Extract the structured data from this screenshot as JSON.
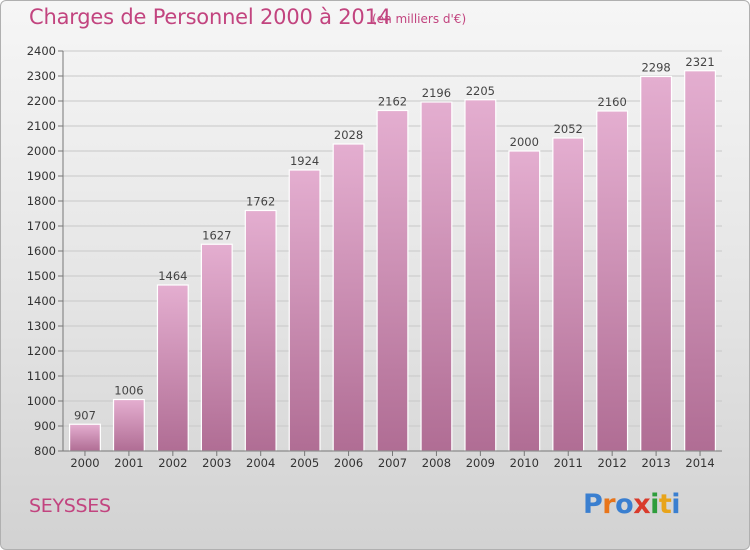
{
  "title": "Charges de Personnel 2000 à 2014",
  "subtitle": "(en milliers d'€)",
  "city": "SEYSSES",
  "logo": {
    "text": "Proxiti",
    "letter_colors": [
      "#3a7fd0",
      "#e8751a",
      "#3a7fd0",
      "#d93a2b",
      "#2e9d3c",
      "#e8a41a",
      "#3a7fd0"
    ]
  },
  "colors": {
    "bar_light": "#e4aed0",
    "bar_dark": "#b06d94",
    "title": "#c2447f",
    "grid": "#c8c8c8"
  },
  "chart_data": {
    "type": "bar",
    "categories": [
      "2000",
      "2001",
      "2002",
      "2003",
      "2004",
      "2005",
      "2006",
      "2007",
      "2008",
      "2009",
      "2010",
      "2011",
      "2012",
      "2013",
      "2014"
    ],
    "values": [
      907,
      1006,
      1464,
      1627,
      1762,
      1924,
      2028,
      2162,
      2196,
      2205,
      2000,
      2052,
      2160,
      2298,
      2321
    ],
    "title": "Charges de Personnel 2000 à 2014",
    "xlabel": "",
    "ylabel": "",
    "ylim": [
      800,
      2400
    ],
    "yticks": [
      800,
      900,
      1000,
      1100,
      1200,
      1300,
      1400,
      1500,
      1600,
      1700,
      1800,
      1900,
      2000,
      2100,
      2200,
      2300,
      2400
    ],
    "grid": true,
    "legend": "none"
  }
}
